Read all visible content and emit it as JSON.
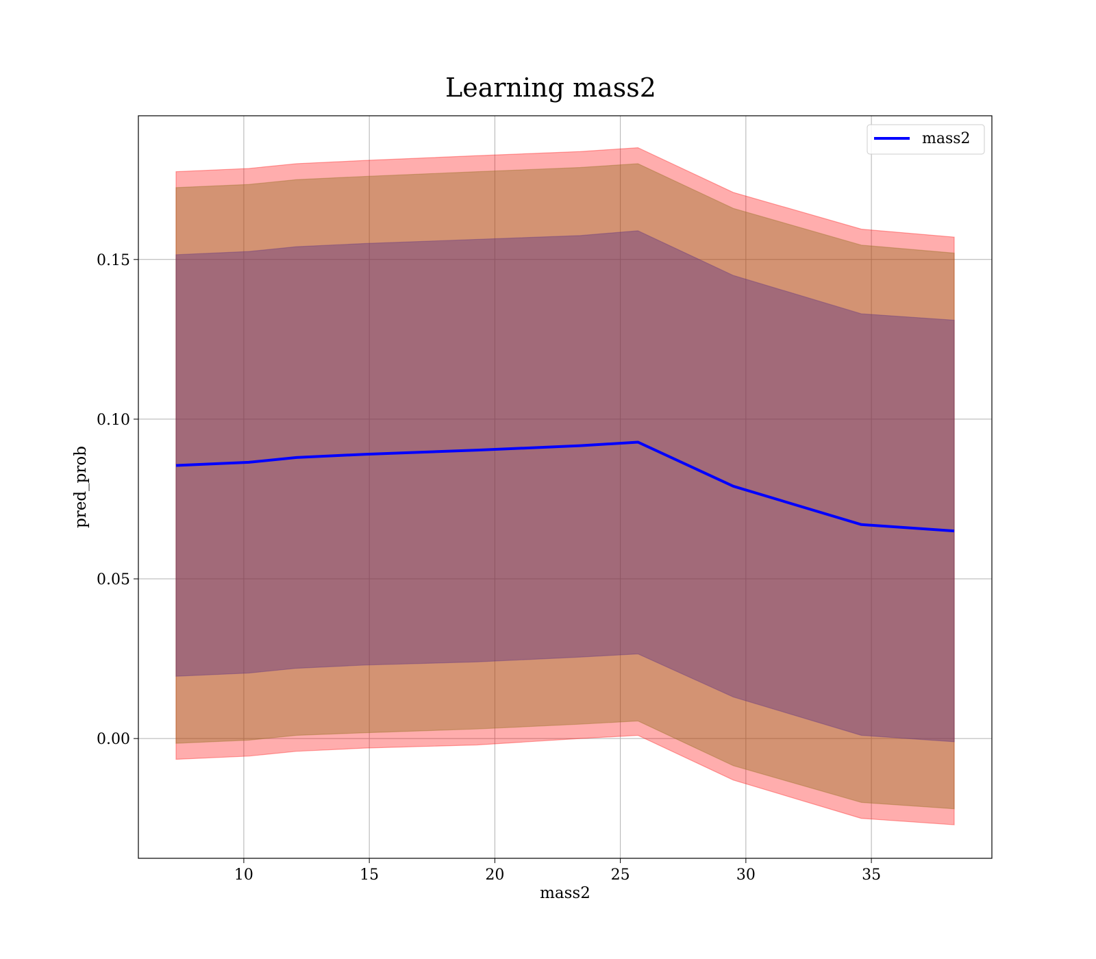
{
  "chart_data": {
    "type": "line",
    "title": "Learning mass2",
    "xlabel": "mass2",
    "ylabel": "pred_prob",
    "xlim": [
      5.8,
      39.8
    ],
    "ylim": [
      -0.0375,
      0.195
    ],
    "x_ticks": [
      10,
      15,
      20,
      25,
      30,
      35
    ],
    "y_ticks": [
      0.0,
      0.05,
      0.1,
      0.15
    ],
    "x_tick_labels": [
      "10",
      "15",
      "20",
      "25",
      "30",
      "35"
    ],
    "y_tick_labels": [
      "0.00",
      "0.05",
      "0.10",
      "0.15"
    ],
    "grid": true,
    "legend_position": "top-right",
    "x": [
      7.3,
      10.2,
      12.1,
      14.8,
      19.3,
      23.4,
      25.7,
      29.5,
      34.6,
      38.3
    ],
    "series": [
      {
        "name": "mass2",
        "color": "#0000ff",
        "values": [
          0.0855,
          0.0865,
          0.088,
          0.089,
          0.0903,
          0.0917,
          0.0928,
          0.079,
          0.067,
          0.065
        ]
      }
    ],
    "bands": [
      {
        "color": "#ff0000",
        "opacity": 0.32,
        "lower": [
          -0.0065,
          -0.0055,
          -0.004,
          -0.003,
          -0.002,
          0.0,
          0.001,
          -0.013,
          -0.025,
          -0.027
        ],
        "upper": [
          0.1775,
          0.1785,
          0.18,
          0.181,
          0.1825,
          0.1838,
          0.185,
          0.171,
          0.1595,
          0.157
        ]
      },
      {
        "color": "#8b6914",
        "opacity": 0.38,
        "lower": [
          -0.0015,
          -0.0005,
          0.001,
          0.0018,
          0.003,
          0.0045,
          0.0055,
          -0.0085,
          -0.02,
          -0.022
        ],
        "upper": [
          0.1725,
          0.1735,
          0.175,
          0.176,
          0.1775,
          0.1788,
          0.18,
          0.166,
          0.1545,
          0.152
        ]
      },
      {
        "color": "#5a2d82",
        "opacity": 0.4,
        "lower": [
          0.0195,
          0.0205,
          0.022,
          0.023,
          0.024,
          0.0255,
          0.0265,
          0.013,
          0.001,
          -0.001
        ],
        "upper": [
          0.1515,
          0.1525,
          0.154,
          0.155,
          0.1563,
          0.1575,
          0.159,
          0.145,
          0.133,
          0.131
        ]
      }
    ]
  }
}
